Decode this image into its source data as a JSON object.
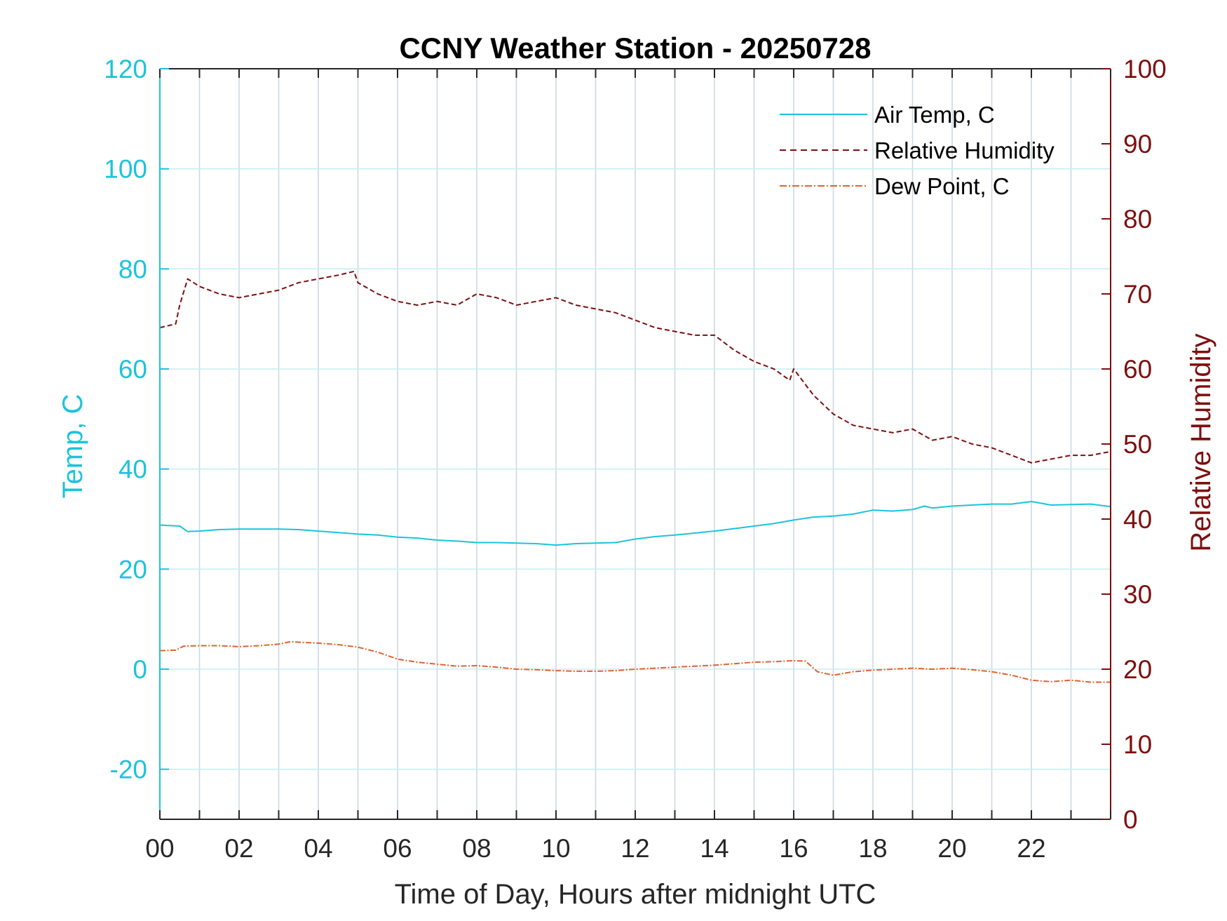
{
  "chart_data": {
    "type": "line",
    "title": "CCNY Weather Station - 20250728",
    "xlabel": "Time of Day, Hours after midnight UTC",
    "ylabel_left": "Temp, C",
    "ylabel_right": "Relative Humidity",
    "xlim": [
      0,
      24
    ],
    "ylim_left": [
      -30,
      120
    ],
    "ylim_right": [
      0,
      100
    ],
    "x_ticks": [
      0,
      2,
      4,
      6,
      8,
      10,
      12,
      14,
      16,
      18,
      20,
      22
    ],
    "x_tick_labels": [
      "00",
      "02",
      "04",
      "06",
      "08",
      "10",
      "12",
      "14",
      "16",
      "18",
      "20",
      "22"
    ],
    "y_left_ticks": [
      -20,
      0,
      20,
      40,
      60,
      80,
      100,
      120
    ],
    "y_left_tick_labels": [
      "-20",
      "0",
      "20",
      "40",
      "60",
      "80",
      "100",
      "120"
    ],
    "y_right_ticks": [
      0,
      10,
      20,
      30,
      40,
      50,
      60,
      70,
      80,
      90,
      100
    ],
    "y_right_tick_labels": [
      "0",
      "10",
      "20",
      "30",
      "40",
      "50",
      "60",
      "70",
      "80",
      "90",
      "100"
    ],
    "grid": true,
    "legend_position": "top-right",
    "colors": {
      "left_axis": "#1cc3dc",
      "right_axis": "#7d0f0f",
      "air_temp": "#1cc3dc",
      "humidity": "#7d0f0f",
      "dew_point": "#e3622e",
      "grid": "#cfd8e0",
      "hgrid": "#c8eef5"
    },
    "series": [
      {
        "name": "Air Temp, C",
        "axis": "left",
        "style": "solid",
        "x": [
          0,
          0.5,
          0.7,
          1,
          1.5,
          2,
          2.5,
          3,
          3.5,
          4,
          4.5,
          5,
          5.5,
          6,
          6.5,
          7,
          7.5,
          8,
          8.5,
          9,
          9.5,
          10,
          10.5,
          11,
          11.5,
          12,
          12.5,
          13,
          13.5,
          14,
          14.5,
          15,
          15.5,
          16,
          16.5,
          17,
          17.5,
          18,
          18.5,
          19,
          19.3,
          19.5,
          20,
          20.5,
          21,
          21.5,
          22,
          22.5,
          23,
          23.5,
          24
        ],
        "values": [
          28.8,
          28.6,
          27.5,
          27.6,
          27.9,
          28.0,
          28.0,
          28.0,
          27.9,
          27.6,
          27.3,
          27.0,
          26.8,
          26.4,
          26.2,
          25.8,
          25.6,
          25.3,
          25.3,
          25.2,
          25.1,
          24.8,
          25.1,
          25.2,
          25.3,
          26.0,
          26.5,
          26.8,
          27.2,
          27.6,
          28.1,
          28.6,
          29.1,
          29.8,
          30.4,
          30.6,
          31.0,
          31.8,
          31.6,
          31.9,
          32.6,
          32.2,
          32.6,
          32.8,
          33.0,
          33.0,
          33.5,
          32.8,
          32.9,
          33.0,
          32.5
        ]
      },
      {
        "name": "Relative Humidity",
        "axis": "right",
        "style": "dashed",
        "x": [
          0,
          0.4,
          0.5,
          0.7,
          1,
          1.5,
          2,
          2.5,
          3,
          3.5,
          4,
          4.5,
          4.9,
          5,
          5.5,
          6,
          6.5,
          7,
          7.5,
          8,
          8.5,
          9,
          9.5,
          10,
          10.5,
          11,
          11.5,
          12,
          12.5,
          13,
          13.5,
          14,
          14.5,
          15,
          15.5,
          15.9,
          16.0,
          16.5,
          17,
          17.5,
          18,
          18.5,
          19,
          19.5,
          20,
          20.5,
          21,
          21.5,
          22,
          22.5,
          23,
          23.5,
          24
        ],
        "values": [
          65.5,
          66,
          68.5,
          72,
          71,
          70,
          69.5,
          70,
          70.5,
          71.5,
          72,
          72.5,
          73,
          71.5,
          70,
          69,
          68.5,
          69,
          68.5,
          70,
          69.5,
          68.5,
          69,
          69.5,
          68.5,
          68,
          67.5,
          66.5,
          65.5,
          65,
          64.5,
          64.5,
          62.5,
          61,
          60,
          58.5,
          60,
          56.5,
          54,
          52.5,
          52,
          51.5,
          52,
          50.5,
          51,
          50,
          49.5,
          48.5,
          47.5,
          48,
          48.5,
          48.5,
          49
        ]
      },
      {
        "name": "Dew Point, C",
        "axis": "left",
        "style": "dashdot",
        "x": [
          0,
          0.4,
          0.6,
          1,
          1.5,
          2,
          2.5,
          3,
          3.3,
          3.5,
          4,
          4.5,
          5,
          5.5,
          6,
          6.5,
          7,
          7.5,
          8,
          8.5,
          9,
          9.5,
          10,
          10.5,
          11,
          11.5,
          12,
          12.5,
          13,
          13.5,
          14,
          14.5,
          15,
          15.5,
          16,
          16.3,
          16.6,
          17,
          17.5,
          18,
          18.5,
          19,
          19.5,
          20,
          20.5,
          21,
          21.5,
          22,
          22.5,
          23,
          23.5,
          24
        ],
        "values": [
          3.7,
          3.8,
          4.6,
          4.7,
          4.7,
          4.5,
          4.7,
          5.0,
          5.5,
          5.4,
          5.2,
          4.9,
          4.4,
          3.4,
          2.0,
          1.4,
          1.0,
          0.6,
          0.7,
          0.4,
          0.0,
          -0.1,
          -0.3,
          -0.4,
          -0.4,
          -0.3,
          0.0,
          0.2,
          0.4,
          0.6,
          0.8,
          1.1,
          1.4,
          1.5,
          1.7,
          1.6,
          -0.5,
          -1.2,
          -0.5,
          -0.2,
          0.0,
          0.2,
          0.0,
          0.2,
          -0.1,
          -0.5,
          -1.2,
          -2.2,
          -2.5,
          -2.2,
          -2.6,
          -2.6
        ]
      }
    ]
  }
}
